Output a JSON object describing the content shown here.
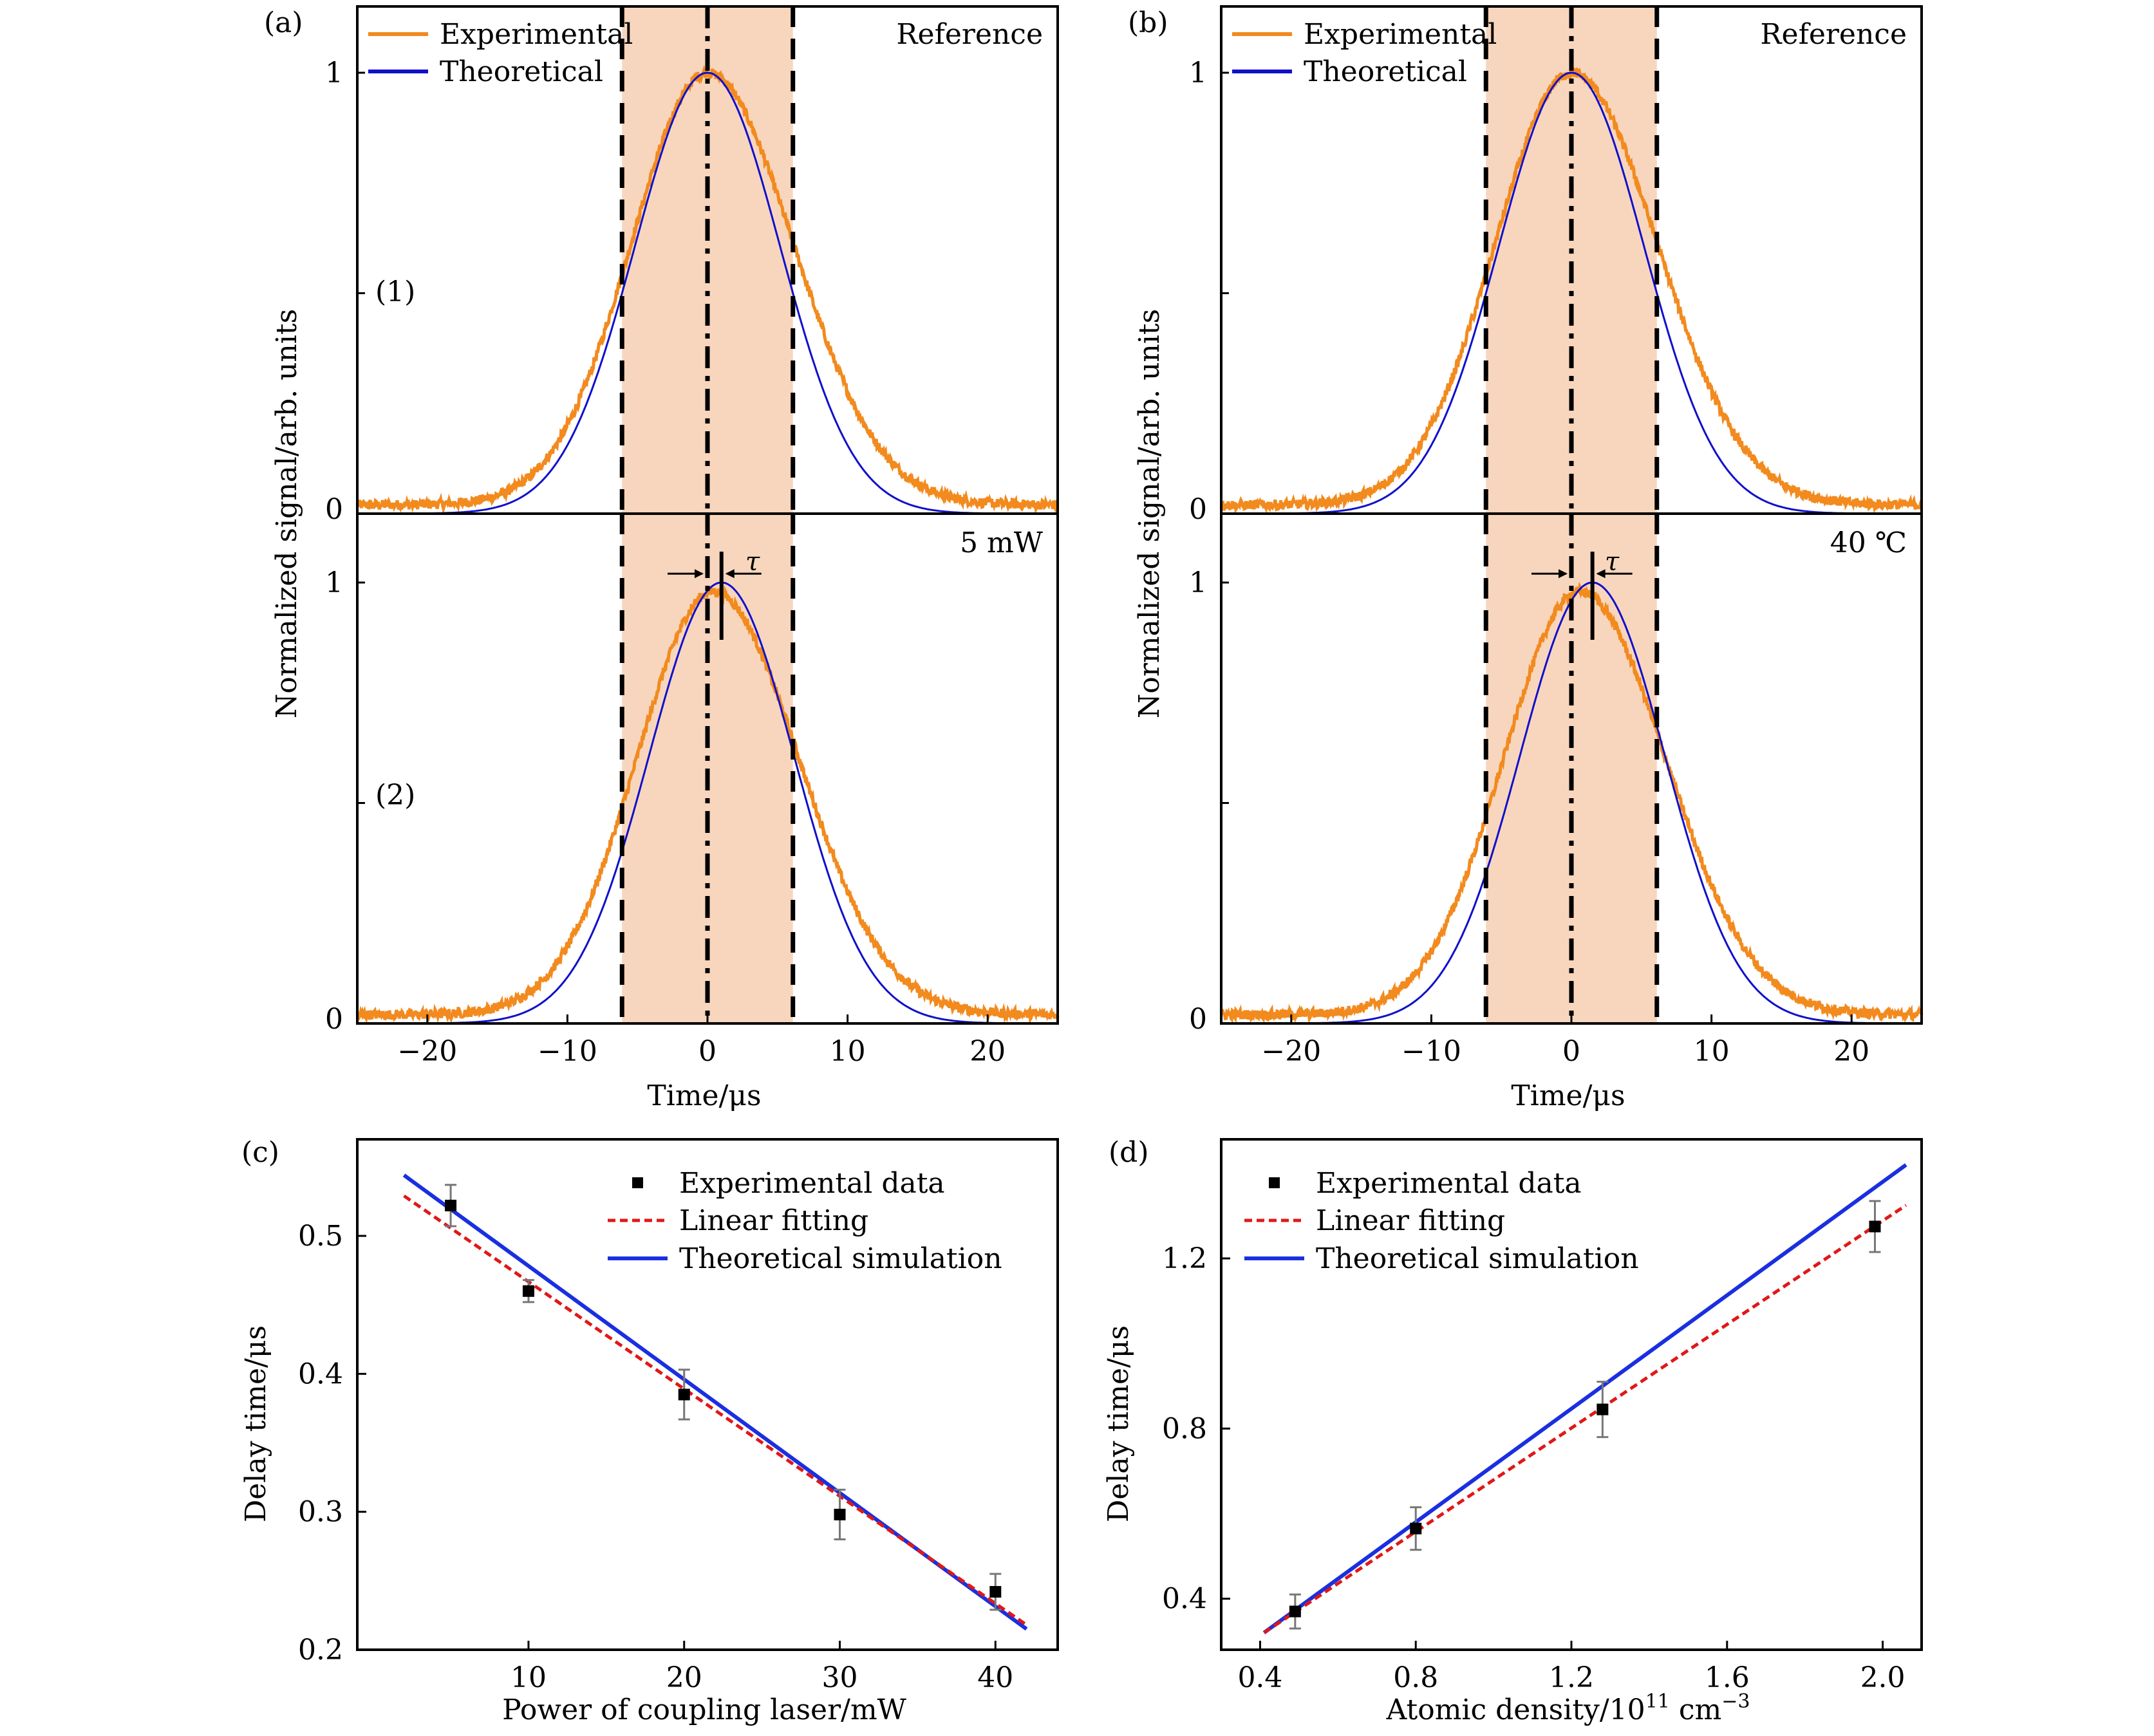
{
  "panel_a": {
    "letter": "(a)",
    "top_tag": "Reference",
    "bottom_tag": "5 mW",
    "label_1": "(1)",
    "label_2": "(2)",
    "tau": "τ",
    "ylabel": "Normalized signal/arb. units",
    "xlabel": "Time/μs",
    "legend": [
      "Experimental",
      "Theoretical"
    ]
  },
  "panel_b": {
    "letter": "(b)",
    "top_tag": "Reference",
    "bottom_tag": "40 ℃",
    "tau": "τ",
    "ylabel": "Normalized signal/arb. units",
    "xlabel": "Time/μs",
    "legend": [
      "Experimental",
      "Theoretical"
    ]
  },
  "panel_c": {
    "letter": "(c)",
    "ylabel": "Delay time/μs",
    "xlabel": "Power of coupling laser/mW",
    "legend": [
      "Experimental data",
      "Linear fitting",
      "Theoretical simulation"
    ]
  },
  "panel_d": {
    "letter": "(d)",
    "ylabel": "Delay time/μs",
    "xlabel_main": "Atomic density/10",
    "xlabel_exp": "11",
    "xlabel_unit": " cm",
    "xlabel_unit_exp": "−3",
    "legend": [
      "Experimental data",
      "Linear fitting",
      "Theoretical simulation"
    ]
  },
  "colors": {
    "experimental": "#f28a1e",
    "theoretical": "#1010cc",
    "shade": "#f8d6bd",
    "fit": "#e01818",
    "sim": "#1a2fe0",
    "marker": "#000000"
  },
  "chart_data": [
    {
      "id": "a1",
      "type": "line",
      "series": [
        {
          "name": "Experimental",
          "center": 0.0,
          "peak": 1.0,
          "baseline": 0.02
        },
        {
          "name": "Theoretical",
          "center": 0.0,
          "peak": 1.0,
          "baseline": 0.0
        }
      ],
      "xlim": [
        -25,
        25
      ],
      "ylim": [
        0,
        1.15
      ],
      "yticks": [
        "0",
        "1"
      ],
      "shaded_region": [
        -6.1,
        6.1
      ],
      "reference_line": 0.0
    },
    {
      "id": "a2",
      "type": "line",
      "series": [
        {
          "name": "Experimental",
          "center": 0.4,
          "peak": 0.98,
          "baseline": 0.02
        },
        {
          "name": "Theoretical",
          "center": 1.0,
          "peak": 1.0,
          "baseline": 0.0
        }
      ],
      "xlim": [
        -25,
        25
      ],
      "ylim": [
        0,
        1.15
      ],
      "yticks": [
        "0",
        "1"
      ],
      "xticks": [
        -20,
        -10,
        0,
        10,
        20
      ],
      "xticklabels": [
        "−20",
        "−10",
        "0",
        "10",
        "20"
      ],
      "shaded_region": [
        -6.1,
        6.1
      ],
      "reference_line": 0.0
    },
    {
      "id": "b1",
      "type": "line",
      "series": [
        {
          "name": "Experimental",
          "center": 0.0,
          "peak": 1.0,
          "baseline": 0.02
        },
        {
          "name": "Theoretical",
          "center": 0.0,
          "peak": 1.0,
          "baseline": 0.0
        }
      ],
      "xlim": [
        -25,
        25
      ],
      "ylim": [
        0,
        1.15
      ],
      "yticks": [
        "0",
        "1"
      ],
      "shaded_region": [
        -6.1,
        6.1
      ],
      "reference_line": 0.0
    },
    {
      "id": "b2",
      "type": "line",
      "series": [
        {
          "name": "Experimental",
          "center": 0.6,
          "peak": 0.98,
          "baseline": 0.02
        },
        {
          "name": "Theoretical",
          "center": 1.5,
          "peak": 1.0,
          "baseline": 0.0
        }
      ],
      "xlim": [
        -25,
        25
      ],
      "ylim": [
        0,
        1.15
      ],
      "yticks": [
        "0",
        "1"
      ],
      "xticks": [
        -20,
        -10,
        0,
        10,
        20
      ],
      "xticklabels": [
        "−20",
        "−10",
        "0",
        "10",
        "20"
      ],
      "shaded_region": [
        -6.1,
        6.1
      ],
      "reference_line": 0.0
    },
    {
      "id": "c",
      "type": "scatter",
      "xlim": [
        -1,
        44
      ],
      "ylim": [
        0.2,
        0.57
      ],
      "xticks": [
        10,
        20,
        30,
        40
      ],
      "yticks": [
        0.2,
        0.3,
        0.4,
        0.5
      ],
      "yticklabels": [
        "0.2",
        "0.3",
        "0.4",
        "0.5"
      ],
      "points": [
        {
          "x": 5,
          "y": 0.522,
          "err": 0.015
        },
        {
          "x": 10,
          "y": 0.46,
          "err": 0.008
        },
        {
          "x": 20,
          "y": 0.385,
          "err": 0.018
        },
        {
          "x": 30,
          "y": 0.298,
          "err": 0.018
        },
        {
          "x": 40,
          "y": 0.242,
          "err": 0.013
        }
      ],
      "fit_line": [
        [
          2,
          0.529
        ],
        [
          42,
          0.218
        ]
      ],
      "sim_line": [
        [
          2,
          0.544
        ],
        [
          42,
          0.215
        ]
      ]
    },
    {
      "id": "d",
      "type": "scatter",
      "xlim": [
        0.3,
        2.1
      ],
      "ylim": [
        0.28,
        1.48
      ],
      "xticks": [
        0.4,
        0.8,
        1.2,
        1.6,
        2.0
      ],
      "xticklabels": [
        "0.4",
        "0.8",
        "1.2",
        "1.6",
        "2.0"
      ],
      "yticks": [
        0.4,
        0.8,
        1.2
      ],
      "yticklabels": [
        "0.4",
        "0.8",
        "1.2"
      ],
      "points": [
        {
          "x": 0.49,
          "y": 0.37,
          "err": 0.04
        },
        {
          "x": 0.8,
          "y": 0.565,
          "err": 0.05
        },
        {
          "x": 1.28,
          "y": 0.845,
          "err": 0.065
        },
        {
          "x": 1.98,
          "y": 1.275,
          "err": 0.06
        }
      ],
      "fit_line": [
        [
          0.41,
          0.32
        ],
        [
          2.06,
          1.325
        ]
      ],
      "sim_line": [
        [
          0.41,
          0.32
        ],
        [
          2.06,
          1.42
        ]
      ]
    }
  ]
}
